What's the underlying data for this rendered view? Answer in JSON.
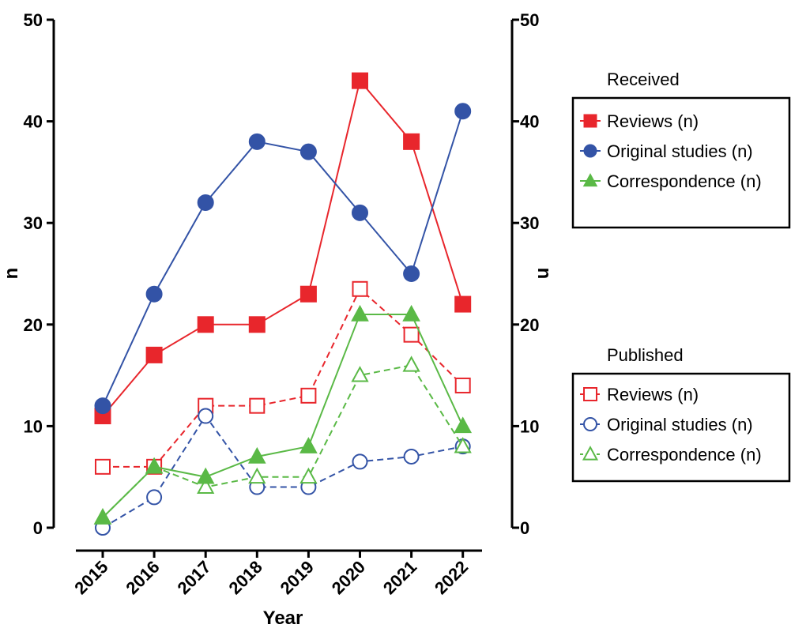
{
  "chart_data": {
    "type": "line",
    "x": [
      "2015",
      "2016",
      "2017",
      "2018",
      "2019",
      "2020",
      "2021",
      "2022"
    ],
    "xlabel": "Year",
    "ylabel": "n",
    "ylabel_right": "n",
    "ylim": [
      0,
      50
    ],
    "yticks": [
      "0",
      "10",
      "20",
      "30",
      "40",
      "50"
    ],
    "groups": [
      {
        "title": "Received",
        "series": [
          {
            "name": "Reviews (n)",
            "values": [
              11,
              17,
              20,
              20,
              23,
              44,
              38,
              22
            ],
            "color": "#e8262c",
            "marker": "square",
            "filled": true,
            "dashed": false
          },
          {
            "name": "Original studies (n)",
            "values": [
              12,
              23,
              32,
              38,
              37,
              31,
              25,
              41
            ],
            "color": "#3353a6",
            "marker": "circle",
            "filled": true,
            "dashed": false
          },
          {
            "name": "Correspondence (n)",
            "values": [
              1,
              6,
              5,
              7,
              8,
              21,
              21,
              10
            ],
            "color": "#5ab946",
            "marker": "triangle",
            "filled": true,
            "dashed": false
          }
        ]
      },
      {
        "title": "Published",
        "series": [
          {
            "name": "Reviews (n)",
            "values": [
              6,
              6,
              12,
              12,
              13,
              23.5,
              19,
              14
            ],
            "color": "#e8262c",
            "marker": "square",
            "filled": false,
            "dashed": true
          },
          {
            "name": "Original studies (n)",
            "values": [
              0,
              3,
              11,
              4,
              4,
              6.5,
              7,
              8
            ],
            "color": "#3353a6",
            "marker": "circle",
            "filled": false,
            "dashed": true
          },
          {
            "name": "Correspondence (n)",
            "values": [
              1,
              6,
              4,
              5,
              5,
              15,
              16,
              8
            ],
            "color": "#5ab946",
            "marker": "triangle",
            "filled": false,
            "dashed": true
          }
        ]
      }
    ]
  }
}
